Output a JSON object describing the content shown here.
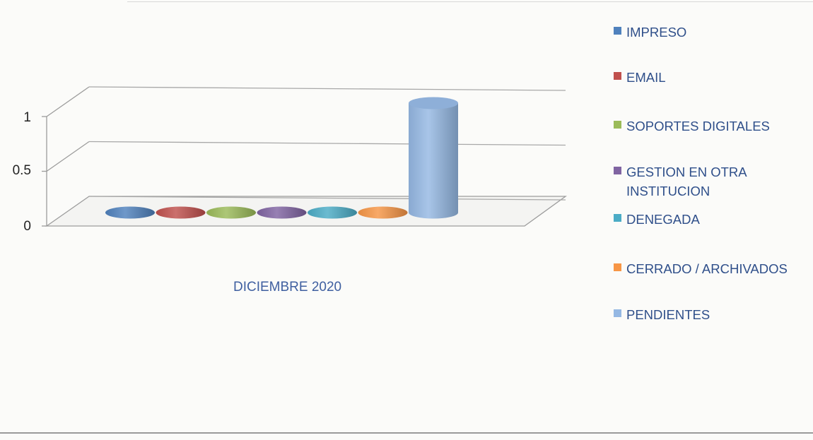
{
  "chart_data": {
    "type": "bar",
    "title": "",
    "xlabel": "",
    "ylabel": "",
    "categories": [
      "DICIEMBRE 2020"
    ],
    "ylim": [
      0,
      1
    ],
    "yticks": [
      "0",
      "0.5",
      "1"
    ],
    "legend_placement": "right",
    "grid": true,
    "three_d": true,
    "bar_shape": "cylinder",
    "series": [
      {
        "name": "IMPRESO",
        "values": [
          0
        ],
        "color": "#4f81bd"
      },
      {
        "name": "EMAIL",
        "values": [
          0
        ],
        "color": "#c0504d"
      },
      {
        "name": "SOPORTES DIGITALES",
        "values": [
          0
        ],
        "color": "#9bbb59"
      },
      {
        "name": "GESTION EN OTRA INSTITUCION",
        "values": [
          0
        ],
        "color": "#8064a2"
      },
      {
        "name": "DENEGADA",
        "values": [
          0
        ],
        "color": "#4bacc6"
      },
      {
        "name": "CERRADO / ARCHIVADOS",
        "values": [
          0
        ],
        "color": "#f79646"
      },
      {
        "name": "PENDIENTES",
        "values": [
          1
        ],
        "color": "#95b8e3"
      }
    ]
  }
}
